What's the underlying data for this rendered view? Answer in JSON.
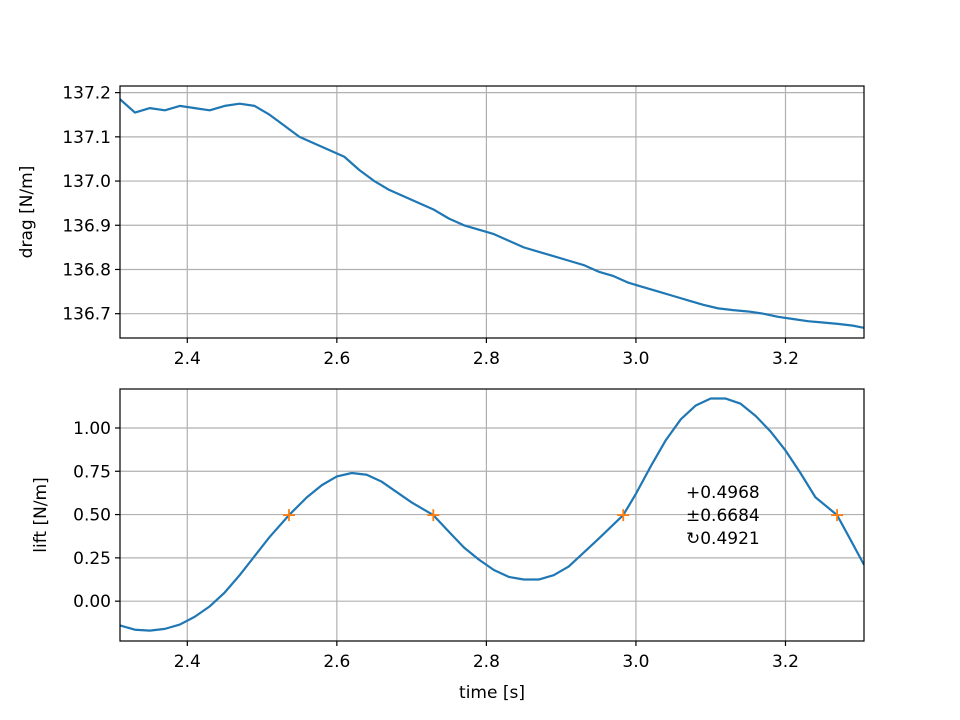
{
  "chart_data": [
    {
      "type": "line",
      "xlabel": "",
      "ylabel": "drag [N/m]",
      "xlim": [
        2.31,
        3.305
      ],
      "ylim": [
        136.645,
        137.215
      ],
      "xticks": [
        2.4,
        2.6,
        2.8,
        3.0,
        3.2
      ],
      "xtick_labels": [
        "2.4",
        "2.6",
        "2.8",
        "3.0",
        "3.2"
      ],
      "yticks": [
        136.7,
        136.8,
        136.9,
        137.0,
        137.1,
        137.2
      ],
      "ytick_labels": [
        "136.7",
        "136.8",
        "136.9",
        "137.0",
        "137.1",
        "137.2"
      ],
      "grid": true,
      "series": [
        {
          "color": "#1f77b4",
          "x": [
            2.31,
            2.33,
            2.35,
            2.37,
            2.39,
            2.41,
            2.43,
            2.45,
            2.47,
            2.49,
            2.51,
            2.53,
            2.55,
            2.57,
            2.59,
            2.61,
            2.63,
            2.65,
            2.67,
            2.69,
            2.71,
            2.73,
            2.75,
            2.77,
            2.79,
            2.81,
            2.83,
            2.85,
            2.87,
            2.89,
            2.91,
            2.93,
            2.95,
            2.97,
            2.99,
            3.01,
            3.03,
            3.05,
            3.07,
            3.09,
            3.11,
            3.13,
            3.15,
            3.17,
            3.19,
            3.21,
            3.23,
            3.25,
            3.27,
            3.29,
            3.305
          ],
          "y": [
            137.185,
            137.155,
            137.165,
            137.16,
            137.17,
            137.165,
            137.16,
            137.17,
            137.175,
            137.17,
            137.15,
            137.125,
            137.1,
            137.085,
            137.07,
            137.055,
            137.025,
            137.0,
            136.98,
            136.965,
            136.95,
            136.935,
            136.915,
            136.9,
            136.89,
            136.88,
            136.865,
            136.85,
            136.84,
            136.83,
            136.82,
            136.81,
            136.795,
            136.785,
            136.77,
            136.76,
            136.75,
            136.74,
            136.73,
            136.72,
            136.712,
            136.708,
            136.705,
            136.7,
            136.693,
            136.688,
            136.683,
            136.68,
            136.677,
            136.673,
            136.668
          ]
        }
      ]
    },
    {
      "type": "line",
      "xlabel": "time [s]",
      "ylabel": "lift [N/m]",
      "xlim": [
        2.31,
        3.305
      ],
      "ylim": [
        -0.23,
        1.225
      ],
      "xticks": [
        2.4,
        2.6,
        2.8,
        3.0,
        3.2
      ],
      "xtick_labels": [
        "2.4",
        "2.6",
        "2.8",
        "3.0",
        "3.2"
      ],
      "yticks": [
        0.0,
        0.25,
        0.5,
        0.75,
        1.0
      ],
      "ytick_labels": [
        "0.00",
        "0.25",
        "0.50",
        "0.75",
        "1.00"
      ],
      "grid": true,
      "series": [
        {
          "color": "#1f77b4",
          "x": [
            2.31,
            2.33,
            2.35,
            2.37,
            2.39,
            2.41,
            2.43,
            2.45,
            2.47,
            2.49,
            2.51,
            2.536,
            2.56,
            2.58,
            2.6,
            2.62,
            2.64,
            2.66,
            2.68,
            2.7,
            2.729,
            2.75,
            2.77,
            2.79,
            2.81,
            2.83,
            2.85,
            2.87,
            2.89,
            2.91,
            2.93,
            2.95,
            2.983,
            3.0,
            3.02,
            3.04,
            3.06,
            3.08,
            3.1,
            3.12,
            3.14,
            3.16,
            3.18,
            3.2,
            3.22,
            3.24,
            3.269,
            3.285,
            3.305
          ],
          "y": [
            -0.14,
            -0.165,
            -0.17,
            -0.16,
            -0.135,
            -0.09,
            -0.03,
            0.05,
            0.15,
            0.26,
            0.37,
            0.497,
            0.6,
            0.67,
            0.72,
            0.74,
            0.73,
            0.69,
            0.63,
            0.57,
            0.497,
            0.4,
            0.31,
            0.24,
            0.18,
            0.14,
            0.125,
            0.125,
            0.15,
            0.2,
            0.28,
            0.36,
            0.497,
            0.62,
            0.78,
            0.93,
            1.05,
            1.13,
            1.17,
            1.17,
            1.14,
            1.07,
            0.98,
            0.87,
            0.74,
            0.6,
            0.497,
            0.37,
            0.21
          ]
        },
        {
          "color": "#ff7f0e",
          "marker": "+",
          "x": [
            2.536,
            2.729,
            2.983,
            3.269
          ],
          "y": [
            0.4968,
            0.4968,
            0.4968,
            0.4968
          ]
        }
      ],
      "annotations": [
        "+0.4968",
        "±0.6684",
        "↻0.4921"
      ]
    }
  ]
}
